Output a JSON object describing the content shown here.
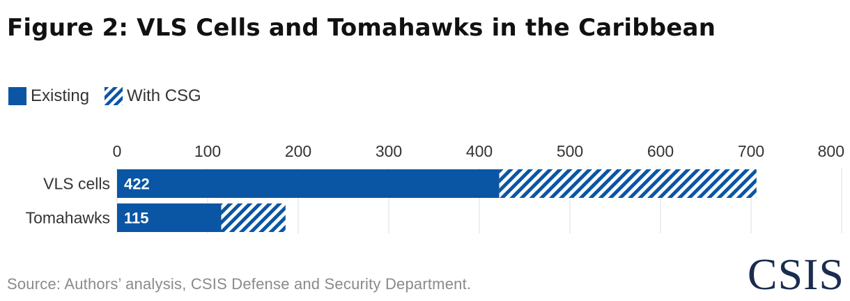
{
  "title": "Figure 2: VLS Cells and Tomahawks in the Caribbean",
  "legend": [
    {
      "label": "Existing",
      "style": "solid"
    },
    {
      "label": "With CSG",
      "style": "hatched"
    }
  ],
  "colors": {
    "bar": "#0a55a4",
    "grid": "#dcdcdc",
    "text": "#333333",
    "source": "#8a8a8a",
    "logo": "#1b2d4f"
  },
  "chart_data": {
    "type": "bar",
    "orientation": "horizontal",
    "stacked": true,
    "categories": [
      "VLS cells",
      "Tomahawks"
    ],
    "series": [
      {
        "name": "Existing",
        "values": [
          422,
          115
        ],
        "labels": [
          "422",
          "115"
        ]
      },
      {
        "name": "With CSG",
        "values": [
          284,
          71
        ]
      }
    ],
    "xlim": [
      0,
      800
    ],
    "xticks": [
      "0",
      "100",
      "200",
      "300",
      "400",
      "500",
      "600",
      "700",
      "800"
    ],
    "x_axis_position": "top",
    "grid": true,
    "legend_position": "top-left"
  },
  "source": "Source: Authors’ analysis, CSIS Defense and Security Department.",
  "logo_text": "CSIS"
}
